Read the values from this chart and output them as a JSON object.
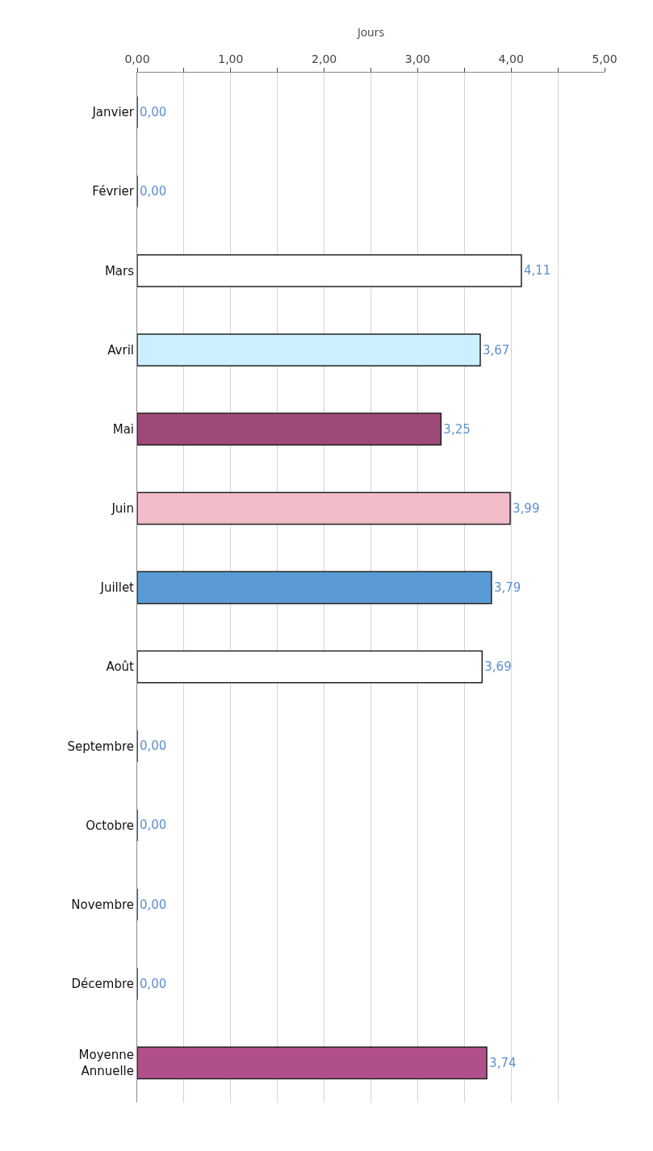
{
  "chart_data": {
    "type": "bar",
    "orientation": "horizontal",
    "xlabel": "Jours",
    "categories": [
      "Janvier",
      "Février",
      "Mars",
      "Avril",
      "Mai",
      "Juin",
      "Juillet",
      "Août",
      "Septembre",
      "Octobre",
      "Novembre",
      "Décembre",
      "Moyenne Annuelle"
    ],
    "values": [
      0,
      0,
      4.11,
      3.67,
      3.25,
      3.99,
      3.79,
      3.69,
      0,
      0,
      0,
      0,
      3.74
    ],
    "value_labels": [
      "0,00",
      "0,00",
      "4,11",
      "3,67",
      "3,25",
      "3,99",
      "3,79",
      "3,69",
      "0,00",
      "0,00",
      "0,00",
      "0,00",
      "3,74"
    ],
    "colors": [
      "#222222",
      "#222222",
      "#ffffff",
      "#ccf0ff",
      "#9e4a78",
      "#f2bcc8",
      "#5b9bd5",
      "#ffffff",
      "#222222",
      "#222222",
      "#222222",
      "#222222",
      "#b0508a"
    ],
    "xlim": [
      0,
      5
    ],
    "xticks": [
      {
        "value": 0,
        "label": "0,00"
      },
      {
        "value": 0.5,
        "label": null
      },
      {
        "value": 1,
        "label": "1,00"
      },
      {
        "value": 1.5,
        "label": null
      },
      {
        "value": 2,
        "label": "2,00"
      },
      {
        "value": 2.5,
        "label": null
      },
      {
        "value": 3,
        "label": "3,00"
      },
      {
        "value": 3.5,
        "label": null
      },
      {
        "value": 4,
        "label": "4,00"
      },
      {
        "value": 4.5,
        "label": null
      },
      {
        "value": 5,
        "label": "5,00"
      }
    ],
    "grid": "x"
  }
}
